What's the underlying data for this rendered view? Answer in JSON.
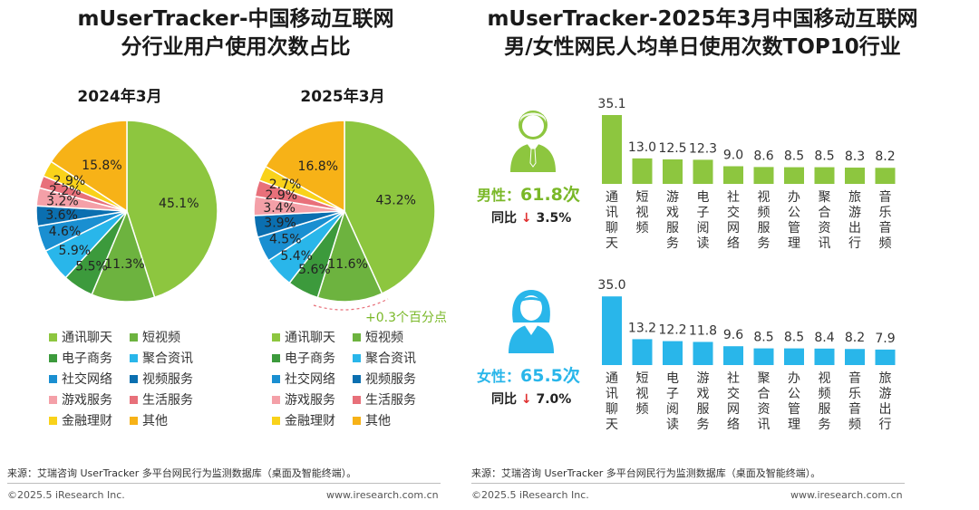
{
  "left_title_line1": "mUserTracker-中国移动互联网",
  "left_title_line2": "分行业用户使用次数占比",
  "right_title_line1": "mUserTracker-2025年3月中国移动互联网",
  "right_title_line2": "男/女性网民人均单日使用次数TOP10行业",
  "legend": [
    {
      "label": "通讯聊天",
      "color": "#8dc63f"
    },
    {
      "label": "短视频",
      "color": "#6db33f"
    },
    {
      "label": "电子商务",
      "color": "#3c9a3c"
    },
    {
      "label": "聚合资讯",
      "color": "#29b6ea"
    },
    {
      "label": "社交网络",
      "color": "#1a8fd1"
    },
    {
      "label": "视频服务",
      "color": "#0b6fb0"
    },
    {
      "label": "游戏服务",
      "color": "#f4a0a8"
    },
    {
      "label": "生活服务",
      "color": "#e8707a"
    },
    {
      "label": "金融理财",
      "color": "#f9d21a"
    },
    {
      "label": "其他",
      "color": "#f7b217"
    }
  ],
  "annotation": "+0.3个百分点",
  "male": {
    "label": "男性：",
    "value": "61.8次",
    "yoy_label": "同比",
    "arrow": "↓",
    "yoy_value": "3.5%"
  },
  "female": {
    "label": "女性：",
    "value": "65.5次",
    "yoy_label": "同比",
    "arrow": "↓",
    "yoy_value": "7.0%"
  },
  "colors": {
    "male_bar": "#8dc63f",
    "female_bar": "#29b6ea",
    "male_text": "#7ab828",
    "female_text": "#29b6ea"
  },
  "footer": {
    "source": "来源：艾瑞咨询 UserTracker 多平台网民行为监测数据库（桌面及智能终端）。",
    "copyright": "©2025.5 iResearch Inc.",
    "website": "www.iresearch.com.cn"
  },
  "chart_data": [
    {
      "type": "pie",
      "title": "2024年3月",
      "categories": [
        "通讯聊天",
        "短视频",
        "电子商务",
        "聚合资讯",
        "社交网络",
        "视频服务",
        "游戏服务",
        "生活服务",
        "金融理财",
        "其他"
      ],
      "values": [
        45.1,
        11.3,
        5.5,
        5.9,
        4.6,
        3.6,
        3.2,
        2.2,
        2.9,
        15.8
      ],
      "labels": [
        "45.1%",
        "11.3%",
        "5.5%",
        "5.9%",
        "4.6%",
        "3.6%",
        "3.2%",
        "2.2%",
        "2.9%",
        "15.8%"
      ]
    },
    {
      "type": "pie",
      "title": "2025年3月",
      "categories": [
        "通讯聊天",
        "短视频",
        "电子商务",
        "聚合资讯",
        "社交网络",
        "视频服务",
        "游戏服务",
        "生活服务",
        "金融理财",
        "其他"
      ],
      "values": [
        43.2,
        11.6,
        5.6,
        5.4,
        4.5,
        3.9,
        3.4,
        2.9,
        2.7,
        16.8
      ],
      "labels": [
        "43.2%",
        "11.6%",
        "5.6%",
        "5.4%",
        "4.5%",
        "3.9%",
        "3.4%",
        "2.9%",
        "2.7%",
        "16.8%"
      ]
    },
    {
      "type": "bar",
      "series": [
        {
          "name": "男性",
          "values": [
            35.1,
            13.0,
            12.5,
            12.3,
            9.0,
            8.6,
            8.5,
            8.5,
            8.3,
            8.2
          ]
        }
      ],
      "categories": [
        "通讯聊天",
        "短视频",
        "游戏服务",
        "电子阅读",
        "社交网络",
        "视频服务",
        "办公管理",
        "聚合资讯",
        "旅游出行",
        "音乐音频"
      ],
      "value_labels": [
        "35.1",
        "13.0",
        "12.5",
        "12.3",
        "9.0",
        "8.6",
        "8.5",
        "8.5",
        "8.3",
        "8.2"
      ]
    },
    {
      "type": "bar",
      "series": [
        {
          "name": "女性",
          "values": [
            35.0,
            13.2,
            12.2,
            11.8,
            9.6,
            8.5,
            8.5,
            8.4,
            8.2,
            7.9
          ]
        }
      ],
      "categories": [
        "通讯聊天",
        "短视频",
        "电子阅读",
        "游戏服务",
        "社交网络",
        "聚合资讯",
        "办公管理",
        "视频服务",
        "音乐音频",
        "旅游出行"
      ],
      "value_labels": [
        "35.0",
        "13.2",
        "12.2",
        "11.8",
        "9.6",
        "8.5",
        "8.5",
        "8.4",
        "8.2",
        "7.9"
      ]
    }
  ]
}
